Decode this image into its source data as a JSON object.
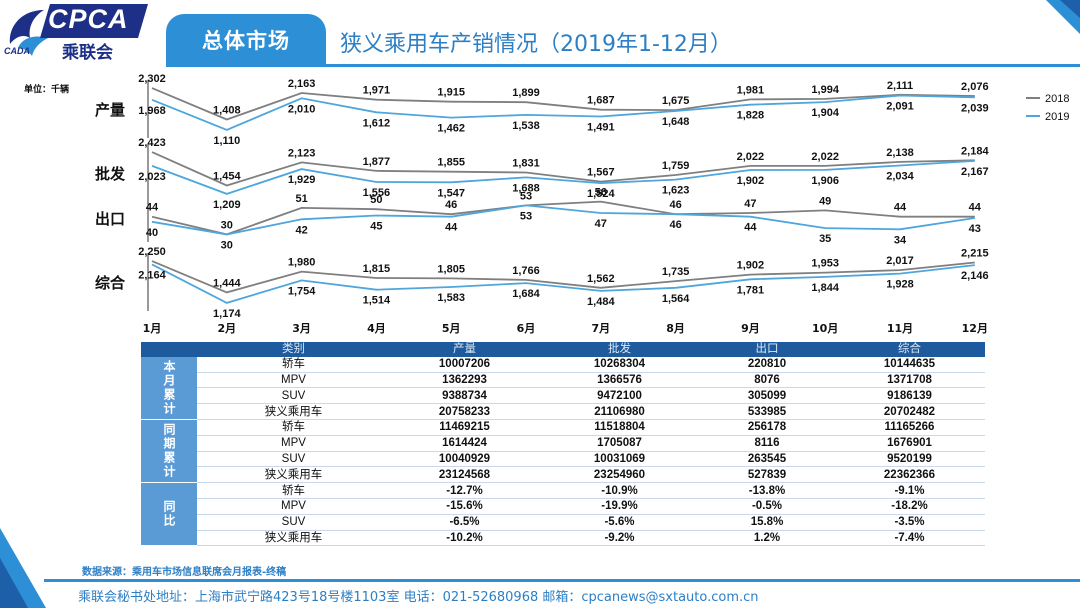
{
  "brand": {
    "logo_text": "CPCA",
    "logo_cn": "乘联会",
    "logo_sub": "CADA"
  },
  "header": {
    "section": "总体市场",
    "title": "狭义乘用车产销情况（2019年1-12月）"
  },
  "colors": {
    "accent": "#2d8fd5",
    "table_head": "#1e5b9e",
    "group_cell": "#5b9bd5",
    "line_2018": "#7f7f7f",
    "line_2019": "#4ea6dc"
  },
  "chart_data": {
    "type": "line",
    "unit_label": "单位：千辆",
    "categories": [
      "1月",
      "2月",
      "3月",
      "4月",
      "5月",
      "6月",
      "7月",
      "8月",
      "9月",
      "10月",
      "11月",
      "12月"
    ],
    "legend": [
      "2018",
      "2019"
    ],
    "legend_position": "top-right",
    "panels": [
      {
        "name": "产量",
        "series": [
          {
            "name": "2018",
            "values": [
              2302,
              1408,
              2163,
              1971,
              1915,
              1899,
              1687,
              1675,
              1981,
              1994,
              2111,
              2076
            ],
            "labels": [
              "2,302",
              "1,408",
              "2,163",
              "1,971",
              "1,915",
              "1,899",
              "1,687",
              "1,675",
              "1,981",
              "1,994",
              "2,111",
              "2,076"
            ]
          },
          {
            "name": "2019",
            "values": [
              1968,
              1110,
              2010,
              1612,
              1462,
              1538,
              1491,
              1648,
              1828,
              1904,
              2091,
              2039
            ],
            "labels": [
              "1,968",
              "1,110",
              "2,010",
              "1,612",
              "1,462",
              "1,538",
              "1,491",
              "1,648",
              "1,828",
              "1,904",
              "2,091",
              "2,039"
            ]
          }
        ]
      },
      {
        "name": "批发",
        "series": [
          {
            "name": "2018",
            "values": [
              2423,
              1454,
              2123,
              1877,
              1855,
              1831,
              1567,
              1759,
              2022,
              2022,
              2138,
              2184
            ],
            "labels": [
              "2,423",
              "1,454",
              "2,123",
              "1,877",
              "1,855",
              "1,831",
              "1,567",
              "1,759",
              "2,022",
              "2,022",
              "2,138",
              "2,184"
            ]
          },
          {
            "name": "2019",
            "values": [
              2023,
              1209,
              1929,
              1556,
              1547,
              1688,
              1524,
              1623,
              1902,
              1906,
              2034,
              2167
            ],
            "labels": [
              "2,023",
              "1,209",
              "1,929",
              "1,556",
              "1,547",
              "1,688",
              "1,524",
              "1,623",
              "1,902",
              "1,906",
              "2,034",
              "2,167"
            ]
          }
        ]
      },
      {
        "name": "出口",
        "series": [
          {
            "name": "2018",
            "values": [
              44,
              30,
              51,
              50,
              46,
              53,
              56,
              46,
              47,
              49,
              44,
              44
            ],
            "labels": [
              "44",
              "30",
              "51",
              "50",
              "46",
              "53",
              "56",
              "46",
              "47",
              "49",
              "44",
              "44"
            ]
          },
          {
            "name": "2019",
            "values": [
              40,
              30,
              42,
              45,
              44,
              53,
              47,
              46,
              44,
              35,
              34,
              43
            ],
            "labels": [
              "40",
              "30",
              "42",
              "45",
              "44",
              "53",
              "47",
              "46",
              "44",
              "35",
              "34",
              "43"
            ]
          }
        ]
      },
      {
        "name": "综合",
        "series": [
          {
            "name": "2018",
            "values": [
              2250,
              1444,
              1980,
              1815,
              1805,
              1766,
              1562,
              1735,
              1902,
              1953,
              2017,
              2215
            ],
            "labels": [
              "2,250",
              "1,444",
              "1,980",
              "1,815",
              "1,805",
              "1,766",
              "1,562",
              "1,735",
              "1,902",
              "1,953",
              "2,017",
              "2,215"
            ]
          },
          {
            "name": "2019",
            "values": [
              2164,
              1174,
              1754,
              1514,
              1583,
              1684,
              1484,
              1564,
              1781,
              1844,
              1928,
              2146
            ],
            "labels": [
              "2,164",
              "1,174",
              "1,754",
              "1,514",
              "1,583",
              "1,684",
              "1,484",
              "1,564",
              "1,781",
              "1,844",
              "1,928",
              "2,146"
            ]
          }
        ]
      }
    ]
  },
  "table": {
    "headers": [
      "类别",
      "产量",
      "批发",
      "出口",
      "综合"
    ],
    "groups": [
      {
        "label": "本月累计",
        "rows": [
          [
            "轿车",
            "10007206",
            "10268304",
            "220810",
            "10144635"
          ],
          [
            "MPV",
            "1362293",
            "1366576",
            "8076",
            "1371708"
          ],
          [
            "SUV",
            "9388734",
            "9472100",
            "305099",
            "9186139"
          ],
          [
            "狭义乘用车",
            "20758233",
            "21106980",
            "533985",
            "20702482"
          ]
        ]
      },
      {
        "label": "同期累计",
        "rows": [
          [
            "轿车",
            "11469215",
            "11518804",
            "256178",
            "11165266"
          ],
          [
            "MPV",
            "1614424",
            "1705087",
            "8116",
            "1676901"
          ],
          [
            "SUV",
            "10040929",
            "10031069",
            "263545",
            "9520199"
          ],
          [
            "狭义乘用车",
            "23124568",
            "23254960",
            "527839",
            "22362366"
          ]
        ]
      },
      {
        "label": "同比",
        "rows": [
          [
            "轿车",
            "-12.7%",
            "-10.9%",
            "-13.8%",
            "-9.1%"
          ],
          [
            "MPV",
            "-15.6%",
            "-19.9%",
            "-0.5%",
            "-18.2%"
          ],
          [
            "SUV",
            "-6.5%",
            "-5.6%",
            "15.8%",
            "-3.5%"
          ],
          [
            "狭义乘用车",
            "-10.2%",
            "-9.2%",
            "1.2%",
            "-7.4%"
          ]
        ]
      }
    ]
  },
  "source_note": "数据来源：乘用车市场信息联席会月报表-终稿",
  "footer": "乘联会秘书处地址：上海市武宁路423号18号楼1103室  电话：021-52680968  邮箱：cpcanews@sxtauto.com.cn"
}
